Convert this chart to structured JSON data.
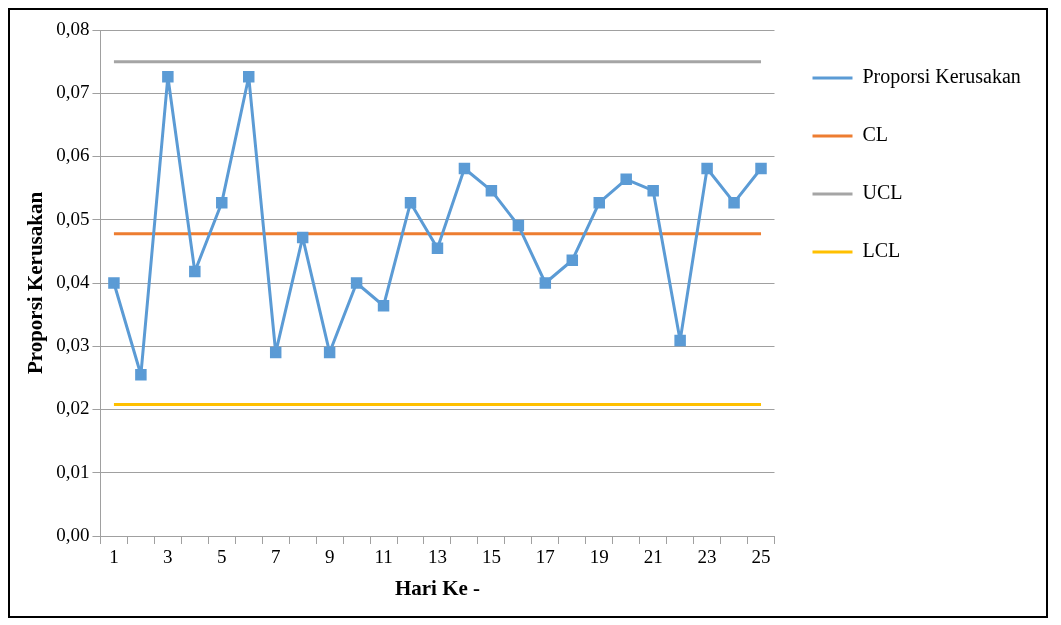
{
  "chart_data": {
    "type": "line",
    "xlabel": "Hari Ke -",
    "ylabel": "Proporsi Kerusakan",
    "x": [
      1,
      2,
      3,
      4,
      5,
      6,
      7,
      8,
      9,
      10,
      11,
      12,
      13,
      14,
      15,
      16,
      17,
      18,
      19,
      20,
      21,
      22,
      23,
      24,
      25
    ],
    "xlim": [
      0.5,
      25.5
    ],
    "xticks": [
      {
        "value": 0.5,
        "label": null
      },
      1,
      {
        "value": 1.5,
        "label": null
      },
      {
        "value": 2.5,
        "label": null
      },
      3,
      {
        "value": 3.5,
        "label": null
      },
      {
        "value": 4.5,
        "label": null
      },
      5,
      {
        "value": 5.5,
        "label": null
      },
      {
        "value": 6.5,
        "label": null
      },
      7,
      {
        "value": 7.5,
        "label": null
      },
      {
        "value": 8.5,
        "label": null
      },
      9,
      {
        "value": 9.5,
        "label": null
      },
      {
        "value": 10.5,
        "label": null
      },
      11,
      {
        "value": 11.5,
        "label": null
      },
      {
        "value": 12.5,
        "label": null
      },
      13,
      {
        "value": 13.5,
        "label": null
      },
      {
        "value": 14.5,
        "label": null
      },
      15,
      {
        "value": 15.5,
        "label": null
      },
      {
        "value": 16.5,
        "label": null
      },
      17,
      {
        "value": 17.5,
        "label": null
      },
      {
        "value": 18.5,
        "label": null
      },
      19,
      {
        "value": 19.5,
        "label": null
      },
      {
        "value": 20.5,
        "label": null
      },
      21,
      {
        "value": 21.5,
        "label": null
      },
      {
        "value": 22.5,
        "label": null
      },
      23,
      {
        "value": 23.5,
        "label": null
      },
      {
        "value": 24.5,
        "label": null
      },
      25,
      {
        "value": 25.5,
        "label": null
      }
    ],
    "series": [
      {
        "name": "Proporsi Kerusakan",
        "color": "#5b9bd5",
        "marker": "square",
        "values": [
          0.04,
          0.0255,
          0.0726,
          0.0418,
          0.0527,
          0.0726,
          0.029,
          0.0472,
          0.029,
          0.04,
          0.0364,
          0.0527,
          0.0455,
          0.0581,
          0.0546,
          0.0491,
          0.04,
          0.0436,
          0.0527,
          0.0564,
          0.0546,
          0.0309,
          0.0581,
          0.0527,
          0.0581
        ]
      },
      {
        "name": "CL",
        "color": "#ed7d31",
        "marker": "none",
        "values": [
          0.0478,
          0.0478,
          0.0478,
          0.0478,
          0.0478,
          0.0478,
          0.0478,
          0.0478,
          0.0478,
          0.0478,
          0.0478,
          0.0478,
          0.0478,
          0.0478,
          0.0478,
          0.0478,
          0.0478,
          0.0478,
          0.0478,
          0.0478,
          0.0478,
          0.0478,
          0.0478,
          0.0478,
          0.0478
        ]
      },
      {
        "name": "UCL",
        "color": "#a5a5a5",
        "marker": "none",
        "values": [
          0.075,
          0.075,
          0.075,
          0.075,
          0.075,
          0.075,
          0.075,
          0.075,
          0.075,
          0.075,
          0.075,
          0.075,
          0.075,
          0.075,
          0.075,
          0.075,
          0.075,
          0.075,
          0.075,
          0.075,
          0.075,
          0.075,
          0.075,
          0.075,
          0.075
        ]
      },
      {
        "name": "LCL",
        "color": "#ffc000",
        "marker": "none",
        "values": [
          0.0208,
          0.0208,
          0.0208,
          0.0208,
          0.0208,
          0.0208,
          0.0208,
          0.0208,
          0.0208,
          0.0208,
          0.0208,
          0.0208,
          0.0208,
          0.0208,
          0.0208,
          0.0208,
          0.0208,
          0.0208,
          0.0208,
          0.0208,
          0.0208,
          0.0208,
          0.0208,
          0.0208,
          0.0208
        ]
      }
    ],
    "ylim": [
      0,
      0.08
    ],
    "yticks": [
      {
        "value": 0,
        "label": "0,00"
      },
      {
        "value": 0.01,
        "label": "0,01"
      },
      {
        "value": 0.02,
        "label": "0,02"
      },
      {
        "value": 0.03,
        "label": "0,03"
      },
      {
        "value": 0.04,
        "label": "0,04"
      },
      {
        "value": 0.05,
        "label": "0,05"
      },
      {
        "value": 0.06,
        "label": "0,06"
      },
      {
        "value": 0.07,
        "label": "0,07"
      },
      {
        "value": 0.08,
        "label": "0,08"
      }
    ],
    "grid": "y",
    "legend": "right",
    "line_style": "solid"
  }
}
